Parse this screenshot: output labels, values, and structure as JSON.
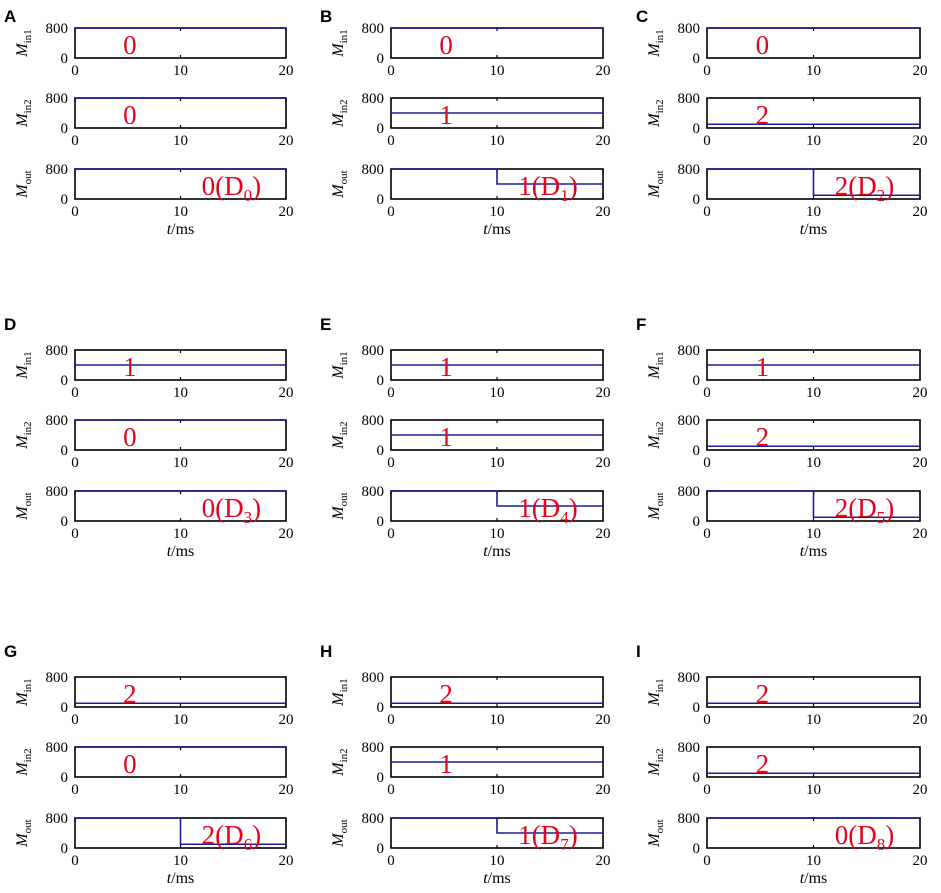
{
  "chart_data": {
    "type": "line",
    "x": [
      0,
      20
    ],
    "xlim": [
      0,
      20
    ],
    "xticks": [
      0,
      10,
      20
    ],
    "xticklabels": [
      "0",
      "10",
      "20"
    ],
    "xlabel_italic": "t",
    "xlabel_rest": "/ms",
    "ylim": [
      0,
      800
    ],
    "yticks": [
      0,
      800
    ],
    "yticklabels": [
      "0",
      "800"
    ],
    "rows": [
      {
        "name_main": "M",
        "name_sub": "in1"
      },
      {
        "name_main": "M",
        "name_sub": "in2"
      },
      {
        "name_main": "M",
        "name_sub": "out"
      }
    ],
    "panels": [
      {
        "label": "A",
        "in1": {
          "value": 800,
          "digit": "0"
        },
        "in2": {
          "value": 800,
          "digit": "0"
        },
        "out": {
          "before": 800,
          "after": 800,
          "switch_t": 10,
          "digit": "0(D",
          "sub": "0",
          "close": ")"
        }
      },
      {
        "label": "B",
        "in1": {
          "value": 800,
          "digit": "0"
        },
        "in2": {
          "value": 400,
          "digit": "1"
        },
        "out": {
          "before": 800,
          "after": 400,
          "switch_t": 10,
          "digit": "1(D",
          "sub": "1",
          "close": ")"
        }
      },
      {
        "label": "C",
        "in1": {
          "value": 800,
          "digit": "0"
        },
        "in2": {
          "value": 100,
          "digit": "2"
        },
        "out": {
          "before": 800,
          "after": 100,
          "switch_t": 10,
          "digit": "2(D",
          "sub": "2",
          "close": ")"
        }
      },
      {
        "label": "D",
        "in1": {
          "value": 400,
          "digit": "1"
        },
        "in2": {
          "value": 800,
          "digit": "0"
        },
        "out": {
          "before": 800,
          "after": 800,
          "switch_t": 10,
          "digit": "0(D",
          "sub": "3",
          "close": ")"
        }
      },
      {
        "label": "E",
        "in1": {
          "value": 400,
          "digit": "1"
        },
        "in2": {
          "value": 400,
          "digit": "1"
        },
        "out": {
          "before": 800,
          "after": 400,
          "switch_t": 10,
          "digit": "1(D",
          "sub": "4",
          "close": ")"
        }
      },
      {
        "label": "F",
        "in1": {
          "value": 400,
          "digit": "1"
        },
        "in2": {
          "value": 100,
          "digit": "2"
        },
        "out": {
          "before": 800,
          "after": 100,
          "switch_t": 10,
          "digit": "2(D",
          "sub": "5",
          "close": ")"
        }
      },
      {
        "label": "G",
        "in1": {
          "value": 100,
          "digit": "2"
        },
        "in2": {
          "value": 800,
          "digit": "0"
        },
        "out": {
          "before": 800,
          "after": 100,
          "switch_t": 10,
          "digit": "2(D",
          "sub": "6",
          "close": ")"
        }
      },
      {
        "label": "H",
        "in1": {
          "value": 100,
          "digit": "2"
        },
        "in2": {
          "value": 400,
          "digit": "1"
        },
        "out": {
          "before": 800,
          "after": 400,
          "switch_t": 10,
          "digit": "1(D",
          "sub": "7",
          "close": ")"
        }
      },
      {
        "label": "I",
        "in1": {
          "value": 100,
          "digit": "2"
        },
        "in2": {
          "value": 100,
          "digit": "2"
        },
        "out": {
          "before": 800,
          "after": 800,
          "switch_t": 10,
          "digit": "0(D",
          "sub": "8",
          "close": ")"
        }
      }
    ],
    "line_color": "#1c1ca0",
    "annotation_color": "#e8001c",
    "grid": false
  }
}
